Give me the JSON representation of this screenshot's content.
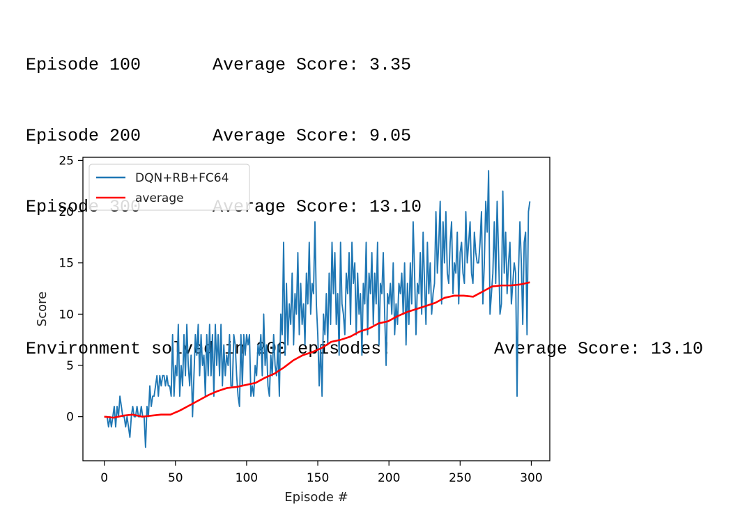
{
  "log": {
    "lines": [
      {
        "episode": "Episode 100",
        "score": "Average Score: 3.35"
      },
      {
        "episode": "Episode 200",
        "score": "Average Score: 9.05"
      },
      {
        "episode": "Episode 300",
        "score": "Average Score: 13.10"
      }
    ],
    "solved": "Environment solved in 200 episodes!",
    "solved_score": "Average Score: 13.10"
  },
  "chart_data": {
    "type": "line",
    "title": "",
    "xlabel": "Episode #",
    "ylabel": "Score",
    "xlim": [
      -15,
      313
    ],
    "ylim": [
      -4.3,
      25.3
    ],
    "xticks": [
      0,
      50,
      100,
      150,
      200,
      250,
      300
    ],
    "yticks": [
      0,
      5,
      10,
      15,
      20,
      25
    ],
    "grid": false,
    "legend": "top-left",
    "series": [
      {
        "name": "DQN+RB+FC64",
        "color": "#1f77b4",
        "x_start": 0,
        "values": [
          0,
          0,
          0,
          -1,
          0,
          -1,
          0,
          1,
          -1,
          1,
          0,
          2,
          1,
          0,
          0,
          -1,
          0,
          -1,
          -2,
          0,
          1,
          0,
          0,
          1,
          0,
          0,
          1,
          0,
          0,
          -3,
          1,
          0,
          3,
          1,
          2,
          2,
          3,
          4,
          2,
          4,
          3,
          4,
          4,
          3,
          4,
          3,
          3,
          2,
          8,
          2,
          5,
          4,
          9,
          2,
          5,
          3,
          8,
          4,
          9,
          5,
          3,
          6,
          0,
          4,
          8,
          6,
          9,
          4,
          8,
          5,
          6,
          2,
          8,
          4,
          9,
          4,
          8,
          2,
          9,
          5,
          8,
          4,
          9,
          3,
          7,
          4,
          6,
          5,
          8,
          3,
          3,
          8,
          7,
          4,
          2,
          1,
          8,
          3,
          8,
          6,
          8,
          7,
          8,
          2,
          3,
          2,
          5,
          4,
          7,
          6,
          8,
          4,
          10,
          5,
          7,
          3,
          2,
          6,
          4,
          8,
          5,
          4,
          7,
          2,
          10,
          8,
          17,
          6,
          13,
          7,
          11,
          9,
          14,
          7,
          12,
          10,
          16,
          8,
          13,
          9,
          11,
          7,
          14,
          11,
          17,
          10,
          13,
          12,
          19,
          11,
          8,
          3,
          7,
          2,
          10,
          8,
          12,
          7,
          14,
          9,
          17,
          12,
          16,
          9,
          12,
          6,
          17,
          11,
          10,
          8,
          14,
          12,
          16,
          9,
          17,
          13,
          15,
          8,
          14,
          10,
          12,
          6,
          13,
          11,
          17,
          8,
          14,
          12,
          16,
          9,
          14,
          11,
          17,
          7,
          13,
          12,
          16,
          10,
          5,
          12,
          11,
          13,
          10,
          15,
          8,
          11,
          9,
          13,
          12,
          14,
          10,
          15,
          7,
          13,
          9,
          15,
          11,
          19,
          14,
          8,
          13,
          12,
          16,
          10,
          18,
          13,
          9,
          17,
          12,
          15,
          10,
          12,
          13,
          20,
          14,
          17,
          21,
          11,
          19,
          15,
          20,
          14,
          13,
          17,
          19,
          12,
          15,
          14,
          18,
          11,
          16,
          17,
          14,
          13,
          20,
          15,
          17,
          19,
          14,
          13,
          18,
          16,
          15,
          15,
          17,
          20,
          11,
          15,
          21,
          18,
          24,
          10,
          12,
          14,
          19,
          13,
          21,
          16,
          10,
          11,
          22,
          14,
          18,
          12,
          15,
          17,
          11,
          13,
          15,
          14,
          2,
          14,
          19,
          15,
          9,
          17,
          18,
          8,
          20,
          21
        ]
      },
      {
        "name": "average",
        "color": "#ff0000",
        "x_start": 0,
        "values": [
          0,
          -0.1,
          0.1,
          0.2,
          0,
          0.1,
          0.2,
          0.2,
          0.6,
          1.1,
          1.6,
          2.1,
          2.5,
          2.8,
          2.9,
          3.1,
          3.3,
          3.8,
          4.2,
          4.8,
          5.5,
          6.0,
          6.3,
          6.7,
          7.3,
          7.5,
          7.8,
          8.3,
          8.6,
          9.1,
          9.3,
          9.8,
          10.2,
          10.5,
          10.8,
          11.1,
          11.6,
          11.8,
          11.8,
          11.7,
          12.2,
          12.7,
          12.8,
          12.8,
          12.9,
          13.1
        ]
      }
    ]
  }
}
